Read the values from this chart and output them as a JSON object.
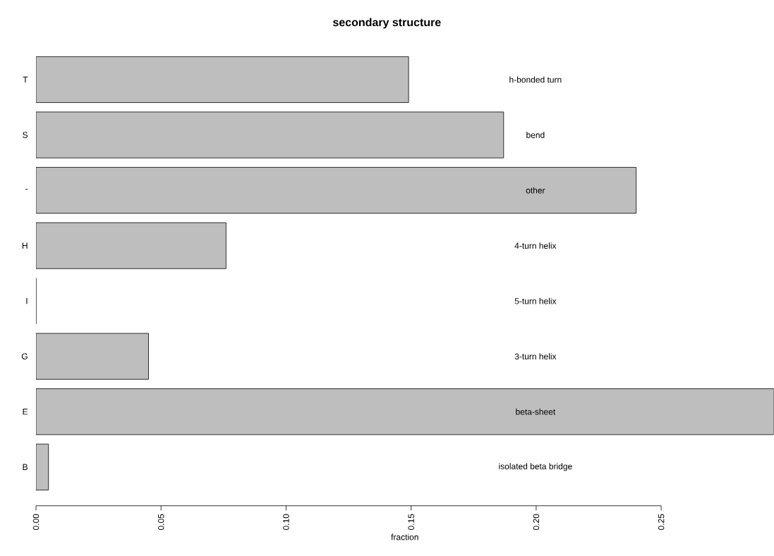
{
  "chart_data": {
    "type": "bar",
    "orientation": "horizontal",
    "title": "secondary structure",
    "xlabel": "fraction",
    "categories": [
      "T",
      "S",
      "-",
      "H",
      "I",
      "G",
      "E",
      "B"
    ],
    "values": [
      0.149,
      0.187,
      0.24,
      0.076,
      0.0,
      0.045,
      0.295,
      0.005
    ],
    "color": "#bebebe",
    "xlim": [
      0,
      0.295
    ],
    "xticks": [
      {
        "value": 0,
        "label": "0.00"
      },
      {
        "value": 0.05,
        "label": "0.05"
      },
      {
        "value": 0.1,
        "label": "0.10"
      },
      {
        "value": 0.15,
        "label": "0.15"
      },
      {
        "value": 0.2,
        "label": "0.20"
      },
      {
        "value": 0.25,
        "label": "0.25"
      }
    ],
    "annotations": [
      "h-bonded turn",
      "bend",
      "other",
      "4-turn helix",
      "5-turn helix",
      "3-turn helix",
      "beta-sheet",
      "isolated beta bridge"
    ],
    "grid": false
  }
}
